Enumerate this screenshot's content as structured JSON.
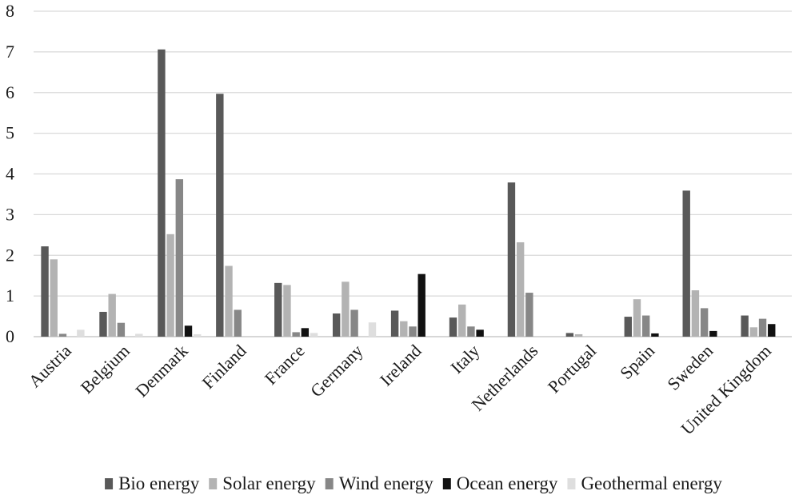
{
  "chart_data": {
    "type": "bar",
    "title": "",
    "xlabel": "",
    "ylabel": "",
    "ylim": [
      0,
      8
    ],
    "yticks": [
      "0",
      "1",
      "2",
      "3",
      "4",
      "5",
      "6",
      "7",
      "8"
    ],
    "grid": true,
    "legend_position": "bottom",
    "categories": [
      "Austria",
      "Belgium",
      "Denmark",
      "Finland",
      "France",
      "Germany",
      "Ireland",
      "Italy",
      "Netherlands",
      "Portugal",
      "Spain",
      "Sweden",
      "United Kingdom"
    ],
    "series": [
      {
        "name": "Bio energy",
        "color": "#595959",
        "values": [
          2.22,
          0.61,
          7.06,
          5.97,
          1.32,
          0.57,
          0.64,
          0.47,
          3.79,
          0.09,
          0.49,
          3.59,
          0.52
        ]
      },
      {
        "name": "Solar energy",
        "color": "#b3b3b3",
        "values": [
          1.9,
          1.05,
          2.52,
          1.74,
          1.27,
          1.35,
          0.38,
          0.79,
          2.32,
          0.06,
          0.92,
          1.14,
          0.23
        ]
      },
      {
        "name": "Wind energy",
        "color": "#878787",
        "values": [
          0.07,
          0.34,
          3.87,
          0.66,
          0.11,
          0.66,
          0.25,
          0.25,
          1.08,
          0.0,
          0.52,
          0.7,
          0.44
        ]
      },
      {
        "name": "Ocean energy",
        "color": "#111111",
        "values": [
          0.0,
          0.0,
          0.27,
          0.0,
          0.21,
          0.0,
          1.54,
          0.17,
          0.0,
          0.0,
          0.08,
          0.14,
          0.31
        ]
      },
      {
        "name": "Geothermal energy",
        "color": "#dedede",
        "values": [
          0.17,
          0.07,
          0.06,
          0.0,
          0.09,
          0.35,
          0.0,
          0.0,
          0.0,
          0.0,
          0.0,
          0.0,
          0.0
        ]
      }
    ]
  }
}
